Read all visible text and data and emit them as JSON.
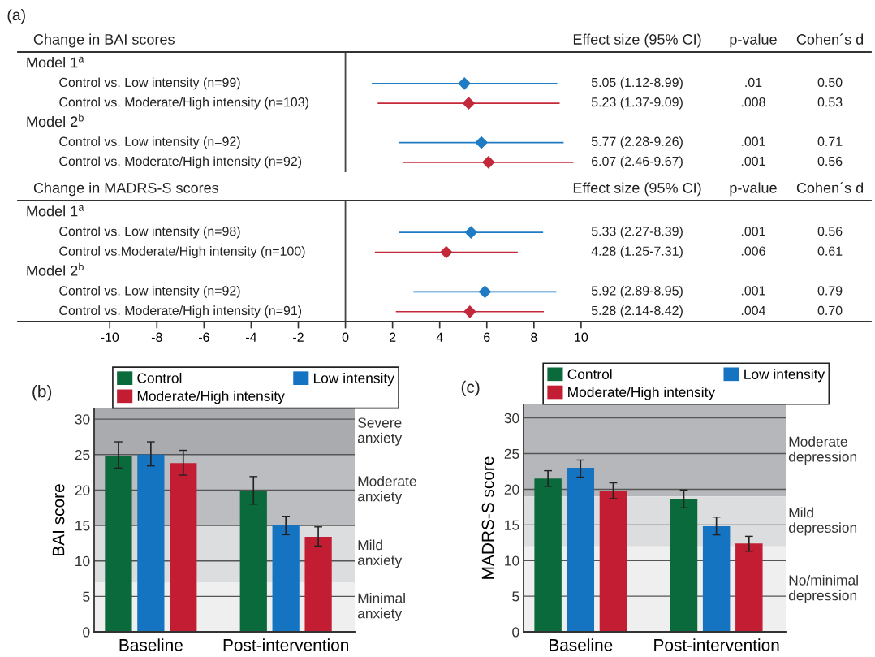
{
  "chart_data": [
    {
      "type": "scatter",
      "orientation": "horizontal",
      "title": "Change in BAI scores",
      "marker": "diamond",
      "tick_labels": "y",
      "categories": [
        "Model 1$^{a}$",
        "Control vs. Low intensity (n=99)",
        "Control vs. Moderate/High intensity (n=103)",
        "Model 2$^{b}$",
        "Control vs. Low intensity (n=92)",
        "Control vs. Moderate/High intensity (n=92)"
      ],
      "xlim": [
        -13.9,
        22.3
      ],
      "series": [
        {
          "color": "#1e7bc4",
          "values": [
            null,
            5.05,
            null,
            null,
            5.77,
            null
          ],
          "errors": [
            null,
            [
              1.12,
              8.99
            ],
            null,
            null,
            [
              2.28,
              9.26
            ],
            null
          ]
        },
        {
          "color": "#c3283b",
          "values": [
            null,
            null,
            5.23,
            null,
            null,
            6.07
          ],
          "errors": [
            null,
            null,
            [
              1.37,
              9.09
            ],
            null,
            null,
            [
              2.46,
              9.67
            ]
          ]
        }
      ],
      "ref_lines": [
        {
          "axis": "x",
          "value": 0,
          "color": "#444444"
        }
      ],
      "annotations": [
        "(a)",
        "Effect size (95% CI)",
        "p-value",
        "Cohen´s d",
        "5.05 (1.12-8.99)",
        ".01",
        "0.50",
        "5.23 (1.37-9.09)",
        ".008",
        "0.53",
        "5.77 (2.28-9.26)",
        ".001",
        "0.71",
        "6.07 (2.46-9.67)",
        ".001",
        "0.56"
      ]
    },
    {
      "type": "scatter",
      "orientation": "horizontal",
      "title": "Change in MADRS-S scores",
      "marker": "diamond",
      "categories": [
        "Model 1$^{a}$",
        "Control vs. Low intensity (n=98)",
        "Control vs.Moderate/High intensity (n=100)",
        "Model 2$^{b}$",
        "Control vs. Low intensity (n=92)",
        "Control vs. Moderate/High intensity (n=91)"
      ],
      "xlim": [
        -13.9,
        22.3
      ],
      "xticks": [
        -10,
        -8,
        -6,
        -4,
        -2,
        0,
        2,
        4,
        6,
        8,
        10
      ],
      "series": [
        {
          "color": "#1e7bc4",
          "values": [
            null,
            5.33,
            null,
            null,
            5.92,
            null
          ],
          "errors": [
            null,
            [
              2.27,
              8.39
            ],
            null,
            null,
            [
              2.89,
              8.95
            ],
            null
          ]
        },
        {
          "color": "#c3283b",
          "values": [
            null,
            null,
            4.28,
            null,
            null,
            5.28
          ],
          "errors": [
            null,
            null,
            [
              1.25,
              7.31
            ],
            null,
            null,
            [
              2.14,
              8.42
            ]
          ]
        }
      ],
      "ref_lines": [
        {
          "axis": "x",
          "value": 0,
          "color": "#444444"
        }
      ],
      "annotations": [
        "Effect size (95% CI)",
        "p-value",
        "Cohen´s d",
        "5.33 (2.27-8.39)",
        ".001",
        "0.56",
        "4.28 (1.25-7.31)",
        ".006",
        "0.61",
        "5.92 (2.89-8.95)",
        ".001",
        "0.79",
        "5.28 (2.14-8.42)",
        ".004",
        "0.70"
      ]
    },
    {
      "type": "bar",
      "ylabel": "BAI score",
      "categories": [
        "Baseline",
        "Post-intervention"
      ],
      "ylim": [
        0,
        31.5
      ],
      "yticks": [
        0,
        5,
        10,
        15,
        20,
        25,
        30
      ],
      "grid": "y",
      "legend": "top",
      "series": [
        {
          "name": "Control",
          "color": "#0b6a3b",
          "values": [
            24.8,
            19.9
          ],
          "errors": [
            [
              23.1,
              26.8
            ],
            [
              18.0,
              21.9
            ]
          ]
        },
        {
          "name": "Low intensity",
          "color": "#1474c1",
          "values": [
            25.0,
            15.0
          ],
          "errors": [
            [
              23.4,
              26.8
            ],
            [
              13.7,
              16.3
            ]
          ]
        },
        {
          "name": "Moderate/High intensity",
          "color": "#c21d32",
          "values": [
            23.8,
            13.4
          ],
          "errors": [
            [
              22.1,
              25.6
            ],
            [
              12.1,
              14.8
            ]
          ]
        }
      ],
      "bands": [
        {
          "axis": "y",
          "from": 25,
          "to": 31.5,
          "label": "Severe\nanxiety",
          "color": "#a9abae"
        },
        {
          "axis": "y",
          "from": 15,
          "to": 25,
          "label": "Moderate\nanxiety",
          "color": "#bbbdc0"
        },
        {
          "axis": "y",
          "from": 7,
          "to": 15,
          "label": "Mild\nanxiety",
          "color": "#dcdddf"
        },
        {
          "axis": "y",
          "from": 0,
          "to": 7,
          "label": "Minimal\nanxiety",
          "color": "#efefef"
        }
      ],
      "annotations": [
        "(b)"
      ]
    },
    {
      "type": "bar",
      "ylabel": "MADRS-S score",
      "categories": [
        "Baseline",
        "Post-intervention"
      ],
      "ylim": [
        0,
        31.9
      ],
      "yticks": [
        0,
        5,
        10,
        15,
        20,
        25,
        30
      ],
      "grid": "y",
      "legend": "top",
      "series": [
        {
          "name": "Control",
          "color": "#0b6a3b",
          "values": [
            21.5,
            18.6
          ],
          "errors": [
            [
              20.4,
              22.6
            ],
            [
              17.4,
              19.9
            ]
          ]
        },
        {
          "name": "Low intensity",
          "color": "#1474c1",
          "values": [
            23.0,
            14.8
          ],
          "errors": [
            [
              21.7,
              24.1
            ],
            [
              13.6,
              16.1
            ]
          ]
        },
        {
          "name": "Moderate/High intensity",
          "color": "#c21d32",
          "values": [
            19.8,
            12.4
          ],
          "errors": [
            [
              18.7,
              20.9
            ],
            [
              11.3,
              13.4
            ]
          ]
        }
      ],
      "bands": [
        {
          "axis": "y",
          "from": 19,
          "to": 31.9,
          "label": "Moderate\ndepression",
          "color": "#b5b7ba"
        },
        {
          "axis": "y",
          "from": 12,
          "to": 19,
          "label": "Mild\ndepression",
          "color": "#dcdddf"
        },
        {
          "axis": "y",
          "from": 0,
          "to": 12,
          "label": "No/minimal\ndepression",
          "color": "#efefef"
        }
      ],
      "annotations": [
        "(c)"
      ]
    }
  ]
}
